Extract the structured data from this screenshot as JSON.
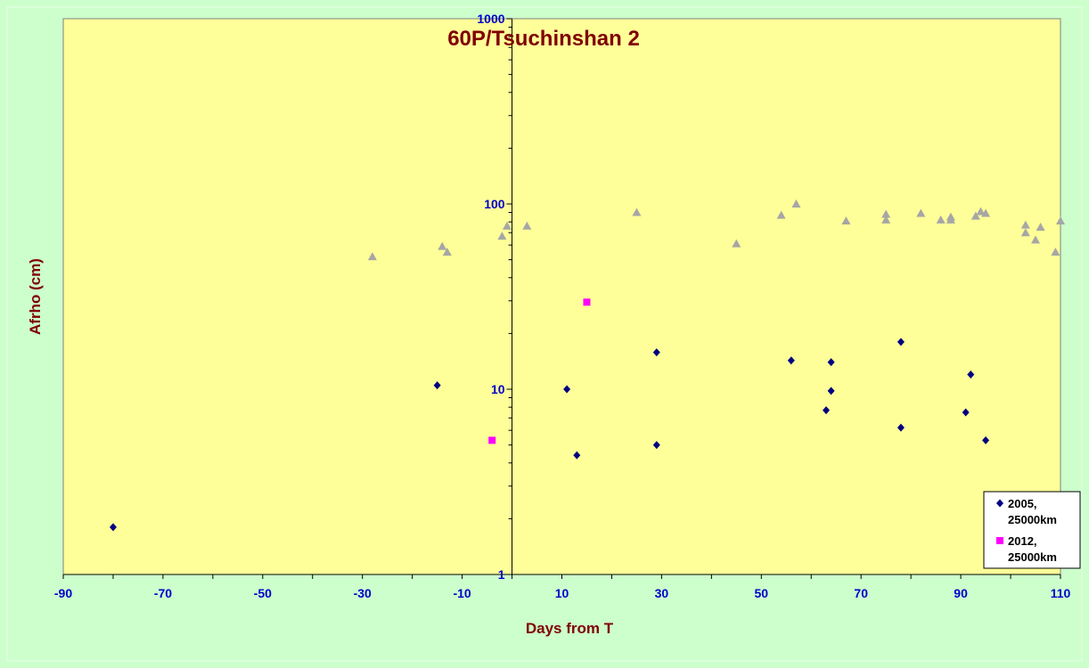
{
  "chart_data": {
    "type": "scatter",
    "title": "60P/Tsuchinshan 2",
    "xlabel": "Days from T",
    "ylabel": "Afrho (cm)",
    "xlim": [
      -90,
      110
    ],
    "ylim": [
      1,
      1000
    ],
    "yscale": "log",
    "x_ticks": [
      -90,
      -70,
      -50,
      -30,
      -10,
      10,
      30,
      50,
      70,
      90,
      110
    ],
    "y_ticks": [
      1,
      10,
      100,
      1000
    ],
    "grid": false,
    "legend_position": "bottom-right",
    "colors": {
      "page_background": "#ccffcc",
      "plot_background": "#ffff99",
      "title_color": "#800000",
      "tick_color": "#0000cc"
    },
    "series": [
      {
        "name": "2005,\n25000km",
        "marker": "diamond",
        "color": "#000080",
        "in_legend": true,
        "points": [
          [
            -80,
            1.8
          ],
          [
            -15,
            10.5
          ],
          [
            11,
            10.0
          ],
          [
            13,
            4.4
          ],
          [
            29,
            15.8
          ],
          [
            29,
            5.0
          ],
          [
            56,
            14.3
          ],
          [
            63,
            7.7
          ],
          [
            64,
            9.8
          ],
          [
            64,
            14.0
          ],
          [
            78,
            18.0
          ],
          [
            78,
            6.2
          ],
          [
            91,
            7.5
          ],
          [
            92,
            12.0
          ],
          [
            95,
            5.3
          ]
        ]
      },
      {
        "name": "2012,\n25000km",
        "marker": "square",
        "color": "#ff00ff",
        "in_legend": true,
        "points": [
          [
            -4,
            5.3
          ],
          [
            15,
            29.5
          ]
        ]
      },
      {
        "marker": "triangle",
        "color": "#a6a6a6",
        "in_legend": false,
        "points": [
          [
            -28,
            52
          ],
          [
            -14,
            59
          ],
          [
            -13,
            55
          ],
          [
            -2,
            67
          ],
          [
            -1,
            76
          ],
          [
            3,
            76
          ],
          [
            25,
            90
          ],
          [
            45,
            61
          ],
          [
            54,
            87
          ],
          [
            57,
            100
          ],
          [
            67,
            81
          ],
          [
            75,
            82
          ],
          [
            75,
            88
          ],
          [
            82,
            89
          ],
          [
            86,
            82
          ],
          [
            88,
            82
          ],
          [
            88,
            85
          ],
          [
            93,
            86
          ],
          [
            94,
            91
          ],
          [
            95,
            89
          ],
          [
            103,
            77
          ],
          [
            103,
            70
          ],
          [
            105,
            64
          ],
          [
            106,
            75
          ],
          [
            109,
            55
          ],
          [
            110,
            81
          ]
        ]
      }
    ]
  }
}
